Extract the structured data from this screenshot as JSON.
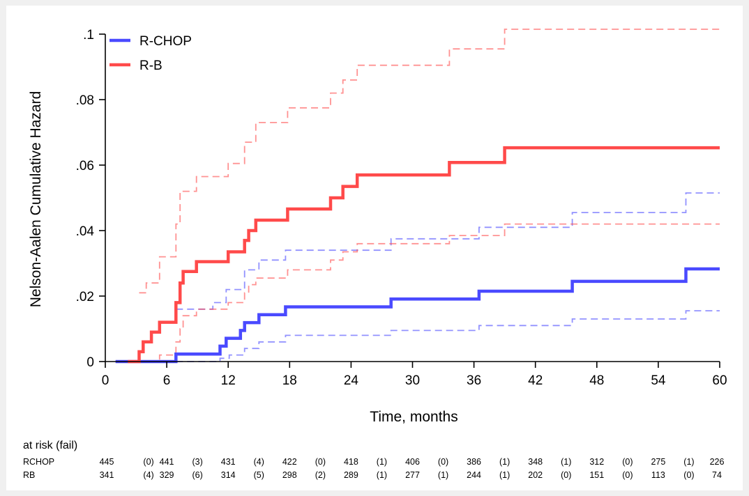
{
  "chart_data": {
    "type": "line",
    "step": true,
    "ylabel": "Nelson-Aalen Cumulative Hazard",
    "xlabel": "Time, months",
    "xlim": [
      0,
      60
    ],
    "ylim": [
      0,
      0.1
    ],
    "x_ticks": [
      0,
      6,
      12,
      18,
      24,
      30,
      36,
      42,
      48,
      54,
      60
    ],
    "x_tick_labels": [
      "0",
      "6",
      "12",
      "18",
      "24",
      "30",
      "36",
      "42",
      "48",
      "54",
      "60"
    ],
    "y_ticks": [
      0,
      0.02,
      0.04,
      0.06,
      0.08,
      0.1
    ],
    "y_tick_labels": [
      "0",
      ".02",
      ".04",
      ".06",
      ".08",
      ".1"
    ],
    "legend_position": "top-left",
    "grid": false,
    "series": [
      {
        "name": "R-CHOP",
        "color": "#4a4aff",
        "estimate": [
          [
            1,
            0
          ],
          [
            6.9,
            0
          ],
          [
            6.9,
            0.0023
          ],
          [
            11.2,
            0.0023
          ],
          [
            11.2,
            0.0047
          ],
          [
            11.8,
            0.0047
          ],
          [
            11.8,
            0.0071
          ],
          [
            13.2,
            0.0071
          ],
          [
            13.2,
            0.0095
          ],
          [
            13.6,
            0.0095
          ],
          [
            13.6,
            0.0119
          ],
          [
            15.0,
            0.0119
          ],
          [
            15.0,
            0.0143
          ],
          [
            17.6,
            0.0143
          ],
          [
            17.6,
            0.0167
          ],
          [
            27.9,
            0.0167
          ],
          [
            27.9,
            0.0191
          ],
          [
            36.5,
            0.0191
          ],
          [
            36.5,
            0.0215
          ],
          [
            45.6,
            0.0215
          ],
          [
            45.6,
            0.0245
          ],
          [
            56.7,
            0.0245
          ],
          [
            56.7,
            0.0283
          ],
          [
            60,
            0.0283
          ]
        ],
        "lower_ci": [
          [
            6.9,
            0
          ],
          [
            11.2,
            0
          ],
          [
            11.2,
            0.001
          ],
          [
            12.1,
            0.001
          ],
          [
            12.1,
            0.002
          ],
          [
            13.6,
            0.002
          ],
          [
            13.6,
            0.004
          ],
          [
            15.0,
            0.004
          ],
          [
            15.0,
            0.006
          ],
          [
            17.6,
            0.006
          ],
          [
            17.6,
            0.008
          ],
          [
            27.9,
            0.008
          ],
          [
            27.9,
            0.0095
          ],
          [
            36.5,
            0.0095
          ],
          [
            36.5,
            0.011
          ],
          [
            45.6,
            0.011
          ],
          [
            45.6,
            0.013
          ],
          [
            56.7,
            0.013
          ],
          [
            56.7,
            0.0155
          ],
          [
            60,
            0.0155
          ]
        ],
        "upper_ci": [
          [
            6.9,
            0.016
          ],
          [
            10.5,
            0.016
          ],
          [
            10.5,
            0.018
          ],
          [
            11.8,
            0.018
          ],
          [
            11.8,
            0.022
          ],
          [
            13.6,
            0.022
          ],
          [
            13.6,
            0.028
          ],
          [
            15.0,
            0.028
          ],
          [
            15.0,
            0.031
          ],
          [
            17.6,
            0.031
          ],
          [
            17.6,
            0.034
          ],
          [
            27.9,
            0.034
          ],
          [
            27.9,
            0.0375
          ],
          [
            36.5,
            0.0375
          ],
          [
            36.5,
            0.041
          ],
          [
            45.6,
            0.041
          ],
          [
            45.6,
            0.0455
          ],
          [
            56.7,
            0.0455
          ],
          [
            56.7,
            0.0515
          ],
          [
            60,
            0.0515
          ]
        ]
      },
      {
        "name": "R-B",
        "color": "#ff4a4a",
        "estimate": [
          [
            2.2,
            0
          ],
          [
            3.3,
            0
          ],
          [
            3.3,
            0.003
          ],
          [
            3.7,
            0.003
          ],
          [
            3.7,
            0.006
          ],
          [
            4.5,
            0.006
          ],
          [
            4.5,
            0.009
          ],
          [
            5.3,
            0.009
          ],
          [
            5.3,
            0.012
          ],
          [
            6.9,
            0.012
          ],
          [
            6.9,
            0.018
          ],
          [
            7.3,
            0.018
          ],
          [
            7.3,
            0.024
          ],
          [
            7.6,
            0.024
          ],
          [
            7.6,
            0.0275
          ],
          [
            8.9,
            0.0275
          ],
          [
            8.9,
            0.0305
          ],
          [
            12.0,
            0.0305
          ],
          [
            12.0,
            0.0335
          ],
          [
            13.6,
            0.0335
          ],
          [
            13.6,
            0.037
          ],
          [
            14.0,
            0.037
          ],
          [
            14.0,
            0.04
          ],
          [
            14.7,
            0.04
          ],
          [
            14.7,
            0.0432
          ],
          [
            17.8,
            0.0432
          ],
          [
            17.8,
            0.0466
          ],
          [
            22.0,
            0.0466
          ],
          [
            22.0,
            0.05
          ],
          [
            23.2,
            0.05
          ],
          [
            23.2,
            0.0535
          ],
          [
            24.6,
            0.0535
          ],
          [
            24.6,
            0.057
          ],
          [
            33.6,
            0.057
          ],
          [
            33.6,
            0.0608
          ],
          [
            39.0,
            0.0608
          ],
          [
            39.0,
            0.0653
          ],
          [
            60,
            0.0653
          ]
        ],
        "lower_ci": [
          [
            3.3,
            0
          ],
          [
            5.3,
            0
          ],
          [
            5.3,
            0.002
          ],
          [
            6.9,
            0.002
          ],
          [
            6.9,
            0.006
          ],
          [
            7.3,
            0.006
          ],
          [
            7.3,
            0.01
          ],
          [
            7.6,
            0.01
          ],
          [
            7.6,
            0.014
          ],
          [
            8.9,
            0.014
          ],
          [
            8.9,
            0.016
          ],
          [
            12.0,
            0.016
          ],
          [
            12.0,
            0.018
          ],
          [
            13.6,
            0.018
          ],
          [
            13.6,
            0.021
          ],
          [
            14.0,
            0.021
          ],
          [
            14.0,
            0.0235
          ],
          [
            14.7,
            0.0235
          ],
          [
            14.7,
            0.0255
          ],
          [
            17.8,
            0.0255
          ],
          [
            17.8,
            0.028
          ],
          [
            22.0,
            0.028
          ],
          [
            22.0,
            0.031
          ],
          [
            23.2,
            0.031
          ],
          [
            23.2,
            0.0335
          ],
          [
            24.6,
            0.0335
          ],
          [
            24.6,
            0.036
          ],
          [
            33.6,
            0.036
          ],
          [
            33.6,
            0.0385
          ],
          [
            39.0,
            0.0385
          ],
          [
            39.0,
            0.042
          ],
          [
            60,
            0.042
          ]
        ],
        "upper_ci": [
          [
            3.3,
            0.021
          ],
          [
            4.0,
            0.021
          ],
          [
            4.0,
            0.024
          ],
          [
            5.3,
            0.024
          ],
          [
            5.3,
            0.032
          ],
          [
            6.9,
            0.032
          ],
          [
            6.9,
            0.042
          ],
          [
            7.3,
            0.042
          ],
          [
            7.3,
            0.052
          ],
          [
            8.9,
            0.052
          ],
          [
            8.9,
            0.0565
          ],
          [
            12.0,
            0.0565
          ],
          [
            12.0,
            0.0605
          ],
          [
            13.6,
            0.0605
          ],
          [
            13.6,
            0.067
          ],
          [
            14.7,
            0.067
          ],
          [
            14.7,
            0.073
          ],
          [
            17.8,
            0.073
          ],
          [
            17.8,
            0.0775
          ],
          [
            22.0,
            0.0775
          ],
          [
            22.0,
            0.082
          ],
          [
            23.2,
            0.082
          ],
          [
            23.2,
            0.086
          ],
          [
            24.6,
            0.086
          ],
          [
            24.6,
            0.0905
          ],
          [
            33.6,
            0.0905
          ],
          [
            33.6,
            0.0955
          ],
          [
            39.0,
            0.0955
          ],
          [
            39.0,
            0.1015
          ],
          [
            60,
            0.1015
          ]
        ]
      }
    ]
  },
  "risk_table": {
    "title": "at risk (fail)",
    "rows": [
      {
        "label": "RCHOP",
        "cells": [
          "445",
          "(0)",
          "441",
          "(3)",
          "431",
          "(4)",
          "422",
          "(0)",
          "418",
          "(1)",
          "406",
          "(0)",
          "386",
          "(1)",
          "348",
          "(1)",
          "312",
          "(0)",
          "275",
          "(1)",
          "226"
        ]
      },
      {
        "label": "RB",
        "cells": [
          "341",
          "(4)",
          "329",
          "(6)",
          "314",
          "(5)",
          "298",
          "(2)",
          "289",
          "(1)",
          "277",
          "(1)",
          "244",
          "(1)",
          "202",
          "(0)",
          "151",
          "(0)",
          "113",
          "(0)",
          "74"
        ]
      }
    ]
  }
}
